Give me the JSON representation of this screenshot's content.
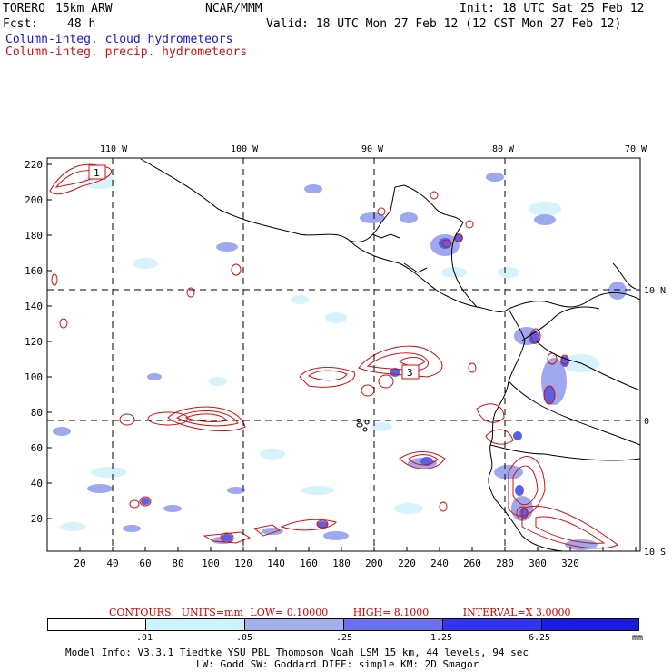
{
  "header": {
    "model": "TORERO",
    "resolution": "15km ARW",
    "org": "NCAR/MMM",
    "init": "Init: 18 UTC Sat 25 Feb 12",
    "fcst_label": "Fcst:",
    "fcst_value": "48 h",
    "valid": "Valid: 18 UTC Mon 27 Feb 12 (12 CST Mon 27 Feb 12)",
    "field1": "Column-integ. cloud hydrometeors",
    "field2": "Column-integ. precip. hydrometeors"
  },
  "map": {
    "lon_labels": [
      "110 W",
      "100 W",
      "90 W",
      "80 W",
      "70 W"
    ],
    "lat_labels_right": [
      "10 N",
      "0",
      "10 S"
    ],
    "y_ticks": [
      "220",
      "200",
      "180",
      "160",
      "140",
      "120",
      "100",
      "80",
      "60",
      "40",
      "20"
    ],
    "x_ticks": [
      "20",
      "40",
      "60",
      "80",
      "100",
      "120",
      "140",
      "160",
      "180",
      "200",
      "220",
      "240",
      "260",
      "280",
      "300",
      "320"
    ],
    "box_labels": [
      "1",
      "3"
    ]
  },
  "contours": {
    "label": "CONTOURS:",
    "units": "UNITS=mm",
    "low": "LOW= 0.10000",
    "high": "HIGH= 8.1000",
    "interval": "INTERVAL=X 3.0000"
  },
  "colorbar": {
    "levels": [
      ".01",
      ".05",
      ".25",
      "1.25",
      "6.25"
    ],
    "unit": "mm",
    "colors": [
      "#ffffff",
      "#ccf4ff",
      "#a4b0ee",
      "#6c70ec",
      "#3434f0",
      "#1a1ae0"
    ]
  },
  "footer": {
    "line1": "Model Info: V3.3.1   Tiedtke YSU PBL  Thompson    Noah LSM  15 km,   44 levels,   94 sec",
    "line2": "LW: Godd SW: Goddard DIFF: simple KM: 2D Smagor"
  }
}
